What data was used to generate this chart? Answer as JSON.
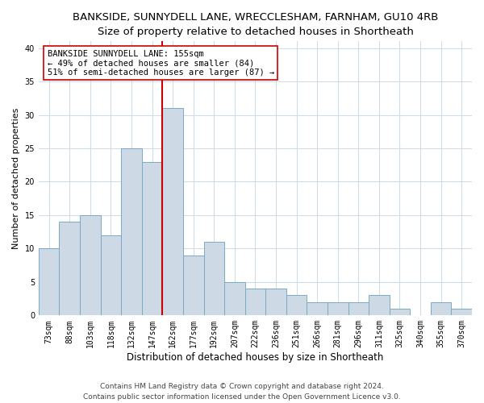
{
  "title": "BANKSIDE, SUNNYDELL LANE, WRECCLESHAM, FARNHAM, GU10 4RB",
  "subtitle": "Size of property relative to detached houses in Shortheath",
  "xlabel": "Distribution of detached houses by size in Shortheath",
  "ylabel": "Number of detached properties",
  "categories": [
    "73sqm",
    "88sqm",
    "103sqm",
    "118sqm",
    "132sqm",
    "147sqm",
    "162sqm",
    "177sqm",
    "192sqm",
    "207sqm",
    "222sqm",
    "236sqm",
    "251sqm",
    "266sqm",
    "281sqm",
    "296sqm",
    "311sqm",
    "325sqm",
    "340sqm",
    "355sqm",
    "370sqm"
  ],
  "values": [
    10,
    14,
    15,
    12,
    25,
    23,
    31,
    9,
    11,
    5,
    4,
    4,
    3,
    2,
    2,
    2,
    3,
    1,
    0,
    2,
    1
  ],
  "bar_color": "#cdd9e5",
  "bar_edge_color": "#7aaac8",
  "bar_edge_width": 0.7,
  "vline_x": 6.0,
  "vline_color": "#cc0000",
  "annotation_line1": "BANKSIDE SUNNYDELL LANE: 155sqm",
  "annotation_line2": "← 49% of detached houses are smaller (84)",
  "annotation_line3": "51% of semi-detached houses are larger (87) →",
  "annotation_box_color": "#ffffff",
  "annotation_box_edge": "#cc0000",
  "ylim": [
    0,
    41
  ],
  "yticks": [
    0,
    5,
    10,
    15,
    20,
    25,
    30,
    35,
    40
  ],
  "footnote1": "Contains HM Land Registry data © Crown copyright and database right 2024.",
  "footnote2": "Contains public sector information licensed under the Open Government Licence v3.0.",
  "background_color": "#ffffff",
  "plot_bg_color": "#ffffff",
  "grid_color": "#d0dce8",
  "title_fontsize": 9.5,
  "xlabel_fontsize": 8.5,
  "ylabel_fontsize": 8,
  "tick_fontsize": 7,
  "annotation_fontsize": 7.5,
  "footnote_fontsize": 6.5
}
